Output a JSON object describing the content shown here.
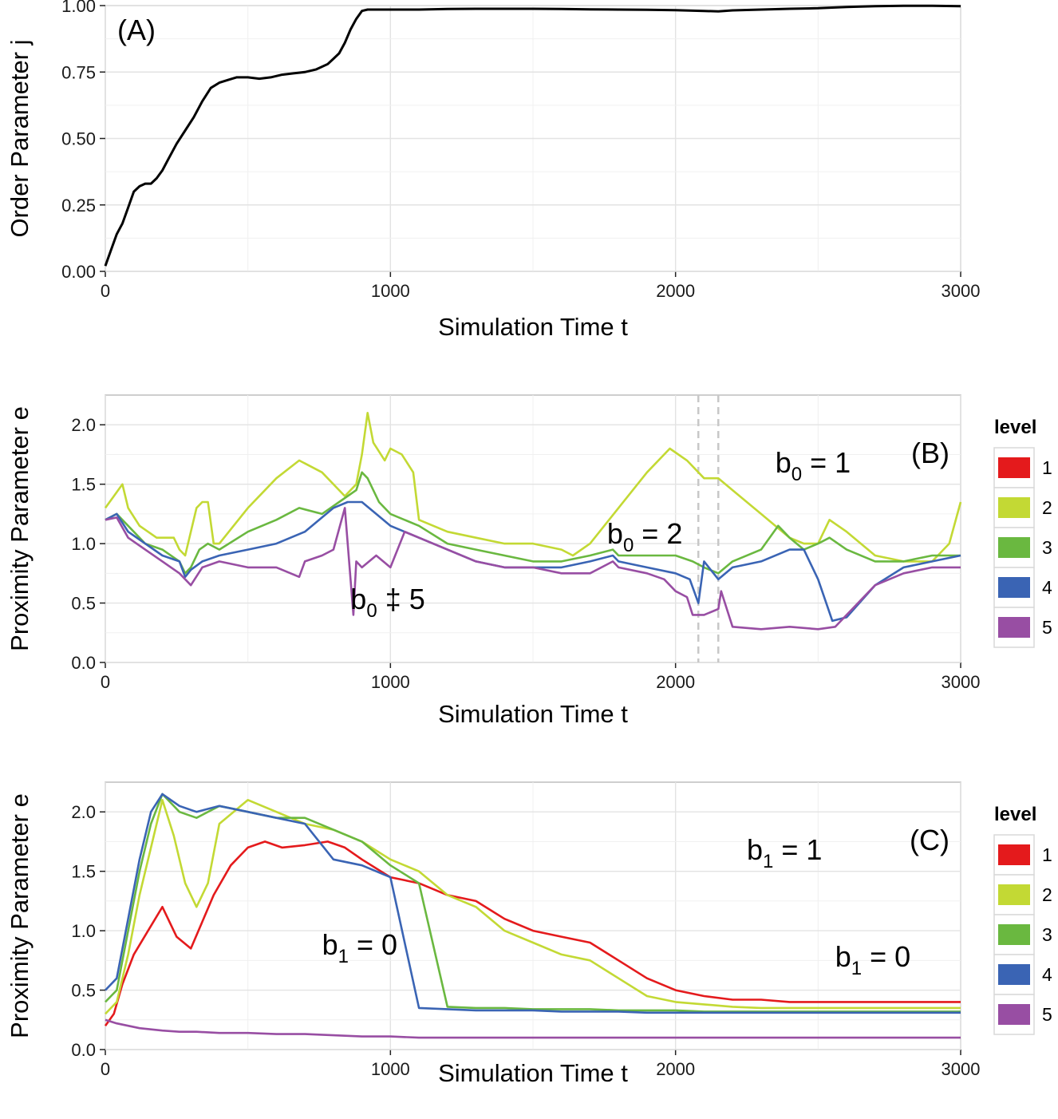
{
  "chart_data": [
    {
      "type": "line",
      "panel_label": "(A)",
      "xlabel": "Simulation Time t",
      "ylabel": "Order Parameter j",
      "xlim": [
        0,
        3000
      ],
      "ylim": [
        0,
        1
      ],
      "xticks": [
        "0",
        "1000",
        "2000",
        "3000"
      ],
      "yticks": [
        "0.00",
        "0.25",
        "0.50",
        "0.75",
        "1.00"
      ],
      "grid": true,
      "series": [
        {
          "color": "#000000",
          "x": [
            0,
            20,
            40,
            60,
            80,
            100,
            120,
            140,
            160,
            180,
            200,
            220,
            250,
            280,
            310,
            340,
            370,
            400,
            430,
            460,
            500,
            540,
            580,
            620,
            660,
            700,
            740,
            780,
            800,
            820,
            840,
            860,
            880,
            900,
            920,
            960,
            1000,
            1100,
            1200,
            1300,
            1400,
            1500,
            1600,
            1700,
            1800,
            1900,
            2000,
            2100,
            2150,
            2200,
            2300,
            2400,
            2500,
            2600,
            2700,
            2800,
            2900,
            3000
          ],
          "y": [
            0.02,
            0.08,
            0.14,
            0.18,
            0.24,
            0.3,
            0.32,
            0.33,
            0.33,
            0.35,
            0.38,
            0.42,
            0.48,
            0.53,
            0.58,
            0.64,
            0.69,
            0.71,
            0.72,
            0.73,
            0.73,
            0.725,
            0.73,
            0.74,
            0.745,
            0.75,
            0.76,
            0.78,
            0.8,
            0.82,
            0.86,
            0.91,
            0.95,
            0.98,
            0.985,
            0.985,
            0.985,
            0.985,
            0.987,
            0.988,
            0.988,
            0.988,
            0.987,
            0.986,
            0.985,
            0.984,
            0.983,
            0.98,
            0.978,
            0.982,
            0.985,
            0.988,
            0.99,
            0.995,
            0.998,
            0.999,
            0.999,
            0.998
          ]
        }
      ]
    },
    {
      "type": "line",
      "panel_label": "(B)",
      "xlabel": "Simulation Time t",
      "ylabel": "Proximity Parameter e",
      "xlim": [
        0,
        3000
      ],
      "ylim": [
        0,
        2.25
      ],
      "xticks": [
        "0",
        "1000",
        "2000",
        "3000"
      ],
      "yticks": [
        "0.0",
        "0.5",
        "1.0",
        "1.5",
        "2.0"
      ],
      "grid": true,
      "vlines": [
        2080,
        2150
      ],
      "legend_title": "level",
      "legend_placement": "right",
      "annotations": [
        {
          "base": "b",
          "sub": "0",
          "rest": " = 1",
          "x": 2350,
          "y": 1.6
        },
        {
          "base": "b",
          "sub": "0",
          "rest": " = 2",
          "x": 1760,
          "y": 1.0
        },
        {
          "base": "b",
          "sub": "0",
          "rest": " ‡ 5",
          "x": 860,
          "y": 0.45
        }
      ],
      "series": [
        {
          "name": "1",
          "color": "#e41a1c",
          "x": [],
          "y": []
        },
        {
          "name": "2",
          "color": "#c3d934",
          "x": [
            0,
            30,
            60,
            80,
            120,
            180,
            240,
            260,
            280,
            300,
            320,
            340,
            360,
            380,
            400,
            500,
            600,
            680,
            760,
            840,
            880,
            900,
            920,
            940,
            980,
            1000,
            1040,
            1080,
            1100,
            1200,
            1300,
            1400,
            1500,
            1600,
            1640,
            1700,
            1800,
            1900,
            1980,
            2040,
            2100,
            2150,
            2200,
            2300,
            2400,
            2450,
            2500,
            2540,
            2600,
            2700,
            2800,
            2900,
            2960,
            3000
          ],
          "y": [
            1.3,
            1.4,
            1.5,
            1.3,
            1.15,
            1.05,
            1.05,
            0.95,
            0.9,
            1.1,
            1.3,
            1.35,
            1.35,
            1.0,
            1.0,
            1.3,
            1.55,
            1.7,
            1.6,
            1.4,
            1.5,
            1.75,
            2.1,
            1.85,
            1.7,
            1.8,
            1.75,
            1.6,
            1.2,
            1.1,
            1.05,
            1.0,
            1.0,
            0.95,
            0.9,
            1.0,
            1.3,
            1.6,
            1.8,
            1.7,
            1.55,
            1.55,
            1.45,
            1.25,
            1.05,
            1.0,
            1.0,
            1.2,
            1.1,
            0.9,
            0.85,
            0.85,
            1.0,
            1.35
          ]
        },
        {
          "name": "3",
          "color": "#6ab840",
          "x": [
            0,
            40,
            80,
            140,
            200,
            260,
            280,
            300,
            330,
            360,
            400,
            500,
            600,
            680,
            760,
            820,
            880,
            900,
            920,
            960,
            1000,
            1100,
            1200,
            1300,
            1400,
            1500,
            1600,
            1700,
            1780,
            1800,
            1900,
            1960,
            2000,
            2060,
            2100,
            2150,
            2200,
            2300,
            2360,
            2400,
            2450,
            2500,
            2540,
            2600,
            2700,
            2800,
            2900,
            3000
          ],
          "y": [
            1.2,
            1.25,
            1.15,
            1.0,
            0.95,
            0.85,
            0.75,
            0.8,
            0.95,
            1.0,
            0.95,
            1.1,
            1.2,
            1.3,
            1.25,
            1.35,
            1.45,
            1.6,
            1.55,
            1.35,
            1.25,
            1.15,
            1.0,
            0.95,
            0.9,
            0.85,
            0.85,
            0.9,
            0.95,
            0.9,
            0.9,
            0.9,
            0.9,
            0.85,
            0.8,
            0.75,
            0.85,
            0.95,
            1.15,
            1.05,
            0.95,
            1.0,
            1.05,
            0.95,
            0.85,
            0.85,
            0.9,
            0.9
          ]
        },
        {
          "name": "4",
          "color": "#3a64b4",
          "x": [
            0,
            40,
            80,
            140,
            200,
            260,
            280,
            300,
            340,
            400,
            500,
            600,
            700,
            800,
            850,
            900,
            950,
            1000,
            1100,
            1200,
            1300,
            1400,
            1500,
            1600,
            1700,
            1780,
            1800,
            1900,
            2000,
            2050,
            2080,
            2100,
            2150,
            2200,
            2300,
            2400,
            2450,
            2500,
            2550,
            2600,
            2700,
            2800,
            2900,
            3000
          ],
          "y": [
            1.2,
            1.25,
            1.1,
            1.0,
            0.9,
            0.85,
            0.72,
            0.78,
            0.85,
            0.9,
            0.95,
            1.0,
            1.1,
            1.3,
            1.35,
            1.35,
            1.25,
            1.15,
            1.05,
            0.95,
            0.85,
            0.8,
            0.8,
            0.8,
            0.85,
            0.9,
            0.85,
            0.8,
            0.75,
            0.7,
            0.5,
            0.85,
            0.7,
            0.8,
            0.85,
            0.95,
            0.95,
            0.7,
            0.35,
            0.38,
            0.65,
            0.8,
            0.85,
            0.9
          ]
        },
        {
          "name": "5",
          "color": "#984ea3",
          "x": [
            0,
            40,
            80,
            140,
            200,
            260,
            300,
            340,
            400,
            500,
            600,
            680,
            700,
            760,
            800,
            840,
            870,
            880,
            900,
            950,
            1000,
            1050,
            1100,
            1200,
            1300,
            1400,
            1500,
            1600,
            1700,
            1780,
            1800,
            1900,
            1960,
            2000,
            2040,
            2060,
            2100,
            2150,
            2160,
            2200,
            2300,
            2400,
            2500,
            2560,
            2600,
            2700,
            2800,
            2900,
            3000
          ],
          "y": [
            1.2,
            1.22,
            1.05,
            0.95,
            0.85,
            0.75,
            0.65,
            0.8,
            0.85,
            0.8,
            0.8,
            0.72,
            0.85,
            0.9,
            0.95,
            1.3,
            0.4,
            0.85,
            0.8,
            0.9,
            0.8,
            1.1,
            1.05,
            0.95,
            0.85,
            0.8,
            0.8,
            0.75,
            0.75,
            0.85,
            0.8,
            0.75,
            0.7,
            0.6,
            0.55,
            0.4,
            0.4,
            0.45,
            0.6,
            0.3,
            0.28,
            0.3,
            0.28,
            0.3,
            0.4,
            0.65,
            0.75,
            0.8,
            0.8
          ]
        }
      ]
    },
    {
      "type": "line",
      "panel_label": "(C)",
      "xlabel": "Simulation Time t",
      "ylabel": "Proximity Parameter e",
      "xlim": [
        0,
        3000
      ],
      "ylim": [
        0,
        2.25
      ],
      "xticks": [
        "0",
        "1000",
        "2000",
        "3000"
      ],
      "yticks": [
        "0.0",
        "0.5",
        "1.0",
        "1.5",
        "2.0"
      ],
      "grid": true,
      "legend_title": "level",
      "legend_placement": "right",
      "annotations": [
        {
          "base": "b",
          "sub": "1",
          "rest": " = 1",
          "x": 2250,
          "y": 1.6
        },
        {
          "base": "b",
          "sub": "1",
          "rest": " = 0",
          "x": 760,
          "y": 0.8
        },
        {
          "base": "b",
          "sub": "1",
          "rest": " = 0",
          "x": 2560,
          "y": 0.7
        }
      ],
      "series": [
        {
          "name": "1",
          "color": "#e41a1c",
          "x": [
            0,
            30,
            60,
            100,
            150,
            200,
            250,
            300,
            380,
            440,
            500,
            560,
            620,
            700,
            780,
            840,
            900,
            1000,
            1100,
            1200,
            1300,
            1400,
            1500,
            1600,
            1700,
            1800,
            1900,
            2000,
            2100,
            2200,
            2300,
            2400,
            2500,
            2600,
            2700,
            2800,
            2900,
            3000
          ],
          "y": [
            0.2,
            0.3,
            0.55,
            0.8,
            1.0,
            1.2,
            0.95,
            0.85,
            1.3,
            1.55,
            1.7,
            1.75,
            1.7,
            1.72,
            1.75,
            1.7,
            1.6,
            1.45,
            1.4,
            1.3,
            1.25,
            1.1,
            1.0,
            0.95,
            0.9,
            0.75,
            0.6,
            0.5,
            0.45,
            0.42,
            0.42,
            0.4,
            0.4,
            0.4,
            0.4,
            0.4,
            0.4,
            0.4
          ]
        },
        {
          "name": "2",
          "color": "#c3d934",
          "x": [
            0,
            40,
            80,
            120,
            160,
            200,
            240,
            280,
            320,
            360,
            400,
            500,
            600,
            700,
            800,
            900,
            1000,
            1100,
            1200,
            1300,
            1400,
            1500,
            1600,
            1700,
            1800,
            1900,
            2000,
            2100,
            2200,
            2300,
            2400,
            2500,
            2600,
            2700,
            2800,
            2900,
            3000
          ],
          "y": [
            0.3,
            0.4,
            0.8,
            1.3,
            1.7,
            2.1,
            1.8,
            1.4,
            1.2,
            1.4,
            1.9,
            2.1,
            2.0,
            1.9,
            1.85,
            1.75,
            1.6,
            1.5,
            1.3,
            1.2,
            1.0,
            0.9,
            0.8,
            0.75,
            0.6,
            0.45,
            0.4,
            0.38,
            0.36,
            0.35,
            0.35,
            0.35,
            0.35,
            0.35,
            0.35,
            0.35,
            0.35
          ]
        },
        {
          "name": "3",
          "color": "#6ab840",
          "x": [
            0,
            40,
            80,
            120,
            160,
            200,
            260,
            320,
            400,
            500,
            600,
            700,
            800,
            900,
            1000,
            1100,
            1200,
            1300,
            1400,
            1500,
            1600,
            1700,
            1800,
            1900,
            2000,
            2100,
            2200,
            2300,
            2400,
            2500,
            2600,
            2700,
            2800,
            2900,
            3000
          ],
          "y": [
            0.4,
            0.5,
            1.0,
            1.5,
            1.9,
            2.15,
            2.0,
            1.95,
            2.05,
            2.0,
            1.95,
            1.95,
            1.85,
            1.75,
            1.55,
            1.4,
            0.36,
            0.35,
            0.35,
            0.34,
            0.34,
            0.34,
            0.33,
            0.33,
            0.33,
            0.32,
            0.32,
            0.32,
            0.32,
            0.32,
            0.32,
            0.32,
            0.32,
            0.32,
            0.32
          ]
        },
        {
          "name": "4",
          "color": "#3a64b4",
          "x": [
            0,
            40,
            80,
            120,
            160,
            200,
            260,
            320,
            400,
            500,
            600,
            700,
            800,
            900,
            1000,
            1100,
            1200,
            1300,
            1400,
            1500,
            1600,
            1700,
            1800,
            1900,
            2000,
            2100,
            2200,
            2300,
            2400,
            2500,
            2600,
            2700,
            2800,
            2900,
            3000
          ],
          "y": [
            0.5,
            0.6,
            1.1,
            1.6,
            2.0,
            2.15,
            2.05,
            2.0,
            2.05,
            2.0,
            1.95,
            1.9,
            1.6,
            1.55,
            1.45,
            0.35,
            0.34,
            0.33,
            0.33,
            0.33,
            0.32,
            0.32,
            0.32,
            0.31,
            0.31,
            0.31,
            0.31,
            0.31,
            0.31,
            0.31,
            0.31,
            0.31,
            0.31,
            0.31,
            0.31
          ]
        },
        {
          "name": "5",
          "color": "#984ea3",
          "x": [
            0,
            40,
            80,
            120,
            160,
            200,
            260,
            320,
            400,
            500,
            600,
            700,
            800,
            900,
            1000,
            1100,
            1200,
            1300,
            1400,
            1500,
            1600,
            1700,
            1800,
            1900,
            2000,
            2100,
            2200,
            2300,
            2400,
            2500,
            2600,
            2700,
            2800,
            2900,
            3000
          ],
          "y": [
            0.25,
            0.22,
            0.2,
            0.18,
            0.17,
            0.16,
            0.15,
            0.15,
            0.14,
            0.14,
            0.13,
            0.13,
            0.12,
            0.11,
            0.11,
            0.1,
            0.1,
            0.1,
            0.1,
            0.1,
            0.1,
            0.1,
            0.1,
            0.1,
            0.1,
            0.1,
            0.1,
            0.1,
            0.1,
            0.1,
            0.1,
            0.1,
            0.1,
            0.1,
            0.1
          ]
        }
      ]
    }
  ],
  "legend": {
    "title": "level",
    "items": [
      {
        "label": "1",
        "color": "#e41a1c"
      },
      {
        "label": "2",
        "color": "#c3d934"
      },
      {
        "label": "3",
        "color": "#6ab840"
      },
      {
        "label": "4",
        "color": "#3a64b4"
      },
      {
        "label": "5",
        "color": "#984ea3"
      }
    ]
  }
}
